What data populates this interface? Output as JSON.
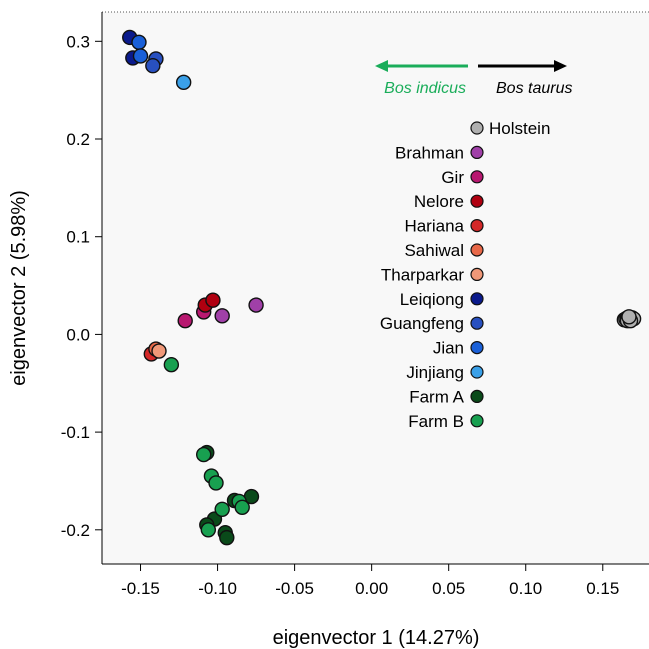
{
  "chart_data": {
    "type": "scatter",
    "title": "",
    "xlabel": "eigenvector 1 (14.27%)",
    "ylabel": "eigenvector 2 (5.98%)",
    "xlim": [
      -0.175,
      0.18
    ],
    "ylim": [
      -0.235,
      0.33
    ],
    "xticks": [
      -0.15,
      -0.1,
      -0.05,
      0.0,
      0.05,
      0.1,
      0.15
    ],
    "xtick_labels": [
      "-0.15",
      "-0.10",
      "-0.05",
      "0.00",
      "0.05",
      "0.10",
      "0.15"
    ],
    "yticks": [
      -0.2,
      -0.1,
      0.0,
      0.1,
      0.2,
      0.3
    ],
    "ytick_labels": [
      "-0.2",
      "-0.1",
      "0.0",
      "0.1",
      "0.2",
      "0.3"
    ],
    "grid": false,
    "legend_position": "right",
    "annotations": {
      "indicus_label": "Bos indicus",
      "taurus_label": "Bos taurus",
      "indicus_color": "#1aad5a",
      "taurus_color": "#000000"
    },
    "series": [
      {
        "name": "Holstein",
        "color": "#b0b0b0",
        "points": [
          [
            0.164,
            0.015
          ],
          [
            0.165,
            0.016
          ],
          [
            0.166,
            0.017
          ],
          [
            0.167,
            0.015
          ],
          [
            0.168,
            0.016
          ],
          [
            0.169,
            0.017
          ],
          [
            0.17,
            0.016
          ],
          [
            0.166,
            0.014
          ],
          [
            0.168,
            0.014
          ],
          [
            0.167,
            0.018
          ]
        ]
      },
      {
        "name": "Brahman",
        "color": "#a040a8",
        "points": [
          [
            -0.075,
            0.03
          ],
          [
            -0.097,
            0.019
          ]
        ]
      },
      {
        "name": "Gir",
        "color": "#b81870",
        "points": [
          [
            -0.109,
            0.023
          ],
          [
            -0.121,
            0.014
          ]
        ]
      },
      {
        "name": "Nelore",
        "color": "#b00010",
        "points": [
          [
            -0.108,
            0.03
          ],
          [
            -0.103,
            0.035
          ]
        ]
      },
      {
        "name": "Hariana",
        "color": "#d42828",
        "points": [
          [
            -0.143,
            -0.02
          ]
        ]
      },
      {
        "name": "Sahiwal",
        "color": "#e86848",
        "points": [
          [
            -0.14,
            -0.015
          ]
        ]
      },
      {
        "name": "Tharparkar",
        "color": "#f09878",
        "points": [
          [
            -0.138,
            -0.017
          ]
        ]
      },
      {
        "name": "Leiqiong",
        "color": "#0a1a8c",
        "points": [
          [
            -0.157,
            0.304
          ],
          [
            -0.155,
            0.283
          ]
        ]
      },
      {
        "name": "Guangfeng",
        "color": "#2850c0",
        "points": [
          [
            -0.14,
            0.282
          ],
          [
            -0.142,
            0.275
          ]
        ]
      },
      {
        "name": "Jian",
        "color": "#1a60d8",
        "points": [
          [
            -0.151,
            0.299
          ],
          [
            -0.15,
            0.285
          ]
        ]
      },
      {
        "name": "Jinjiang",
        "color": "#3aa0e8",
        "points": [
          [
            -0.122,
            0.258
          ]
        ]
      },
      {
        "name": "Farm A",
        "color": "#0a4a1a",
        "points": [
          [
            -0.107,
            -0.121
          ],
          [
            -0.078,
            -0.166
          ],
          [
            -0.102,
            -0.189
          ],
          [
            -0.095,
            -0.203
          ],
          [
            -0.094,
            -0.208
          ],
          [
            -0.107,
            -0.195
          ],
          [
            -0.089,
            -0.17
          ]
        ]
      },
      {
        "name": "Farm B",
        "color": "#18a050",
        "points": [
          [
            -0.13,
            -0.031
          ],
          [
            -0.109,
            -0.123
          ],
          [
            -0.104,
            -0.145
          ],
          [
            -0.101,
            -0.152
          ],
          [
            -0.097,
            -0.179
          ],
          [
            -0.086,
            -0.171
          ],
          [
            -0.084,
            -0.177
          ],
          [
            -0.106,
            -0.2
          ]
        ]
      }
    ]
  }
}
